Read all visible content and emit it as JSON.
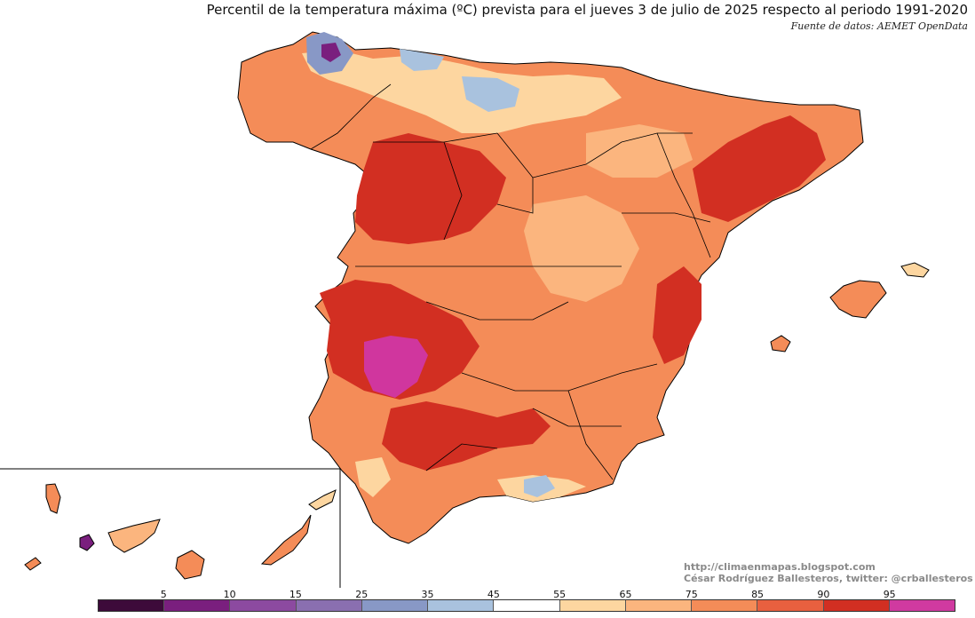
{
  "title": "Percentil de la temperatura máxima (ºC) prevista para el jueves 3 de julio de 2025 respecto al periodo 1991-2020",
  "source": "Fuente de datos: AEMET OpenData",
  "credits": {
    "url": "http://climaenmapas.blogspot.com",
    "author": "César Rodríguez Ballesteros, twitter: @crballesteros"
  },
  "legend": {
    "tick_labels": [
      "5",
      "10",
      "15",
      "25",
      "35",
      "45",
      "55",
      "65",
      "75",
      "85",
      "90",
      "95"
    ],
    "colors": [
      "#3d0a3a",
      "#7a1f7e",
      "#8c4aa0",
      "#8a6fb0",
      "#8898c6",
      "#a9c2de",
      "#ffffff",
      "#fdd6a0",
      "#fbb57e",
      "#f48c58",
      "#e8603f",
      "#d22f22",
      "#d03aa0"
    ]
  },
  "map_colors": {
    "p95_plus": "#d0369e",
    "p90_95": "#d22f22",
    "p85_90": "#e8603f",
    "p75_85": "#f48c58",
    "p65_75": "#fbb57e",
    "p55_65": "#fdd6a0",
    "p45_55": "#ffffff",
    "p35_45": "#a9c2de",
    "p25_35": "#8898c6",
    "p15_25": "#8a6fb0",
    "p05_15": "#7a1f7e"
  }
}
